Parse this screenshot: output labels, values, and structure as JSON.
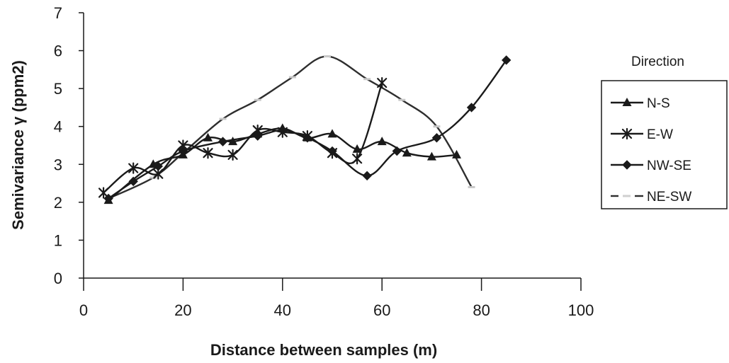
{
  "chart_data": {
    "type": "line",
    "title": "",
    "xlabel": "Distance between samples (m)",
    "ylabel": "Semivariance γ (ppm2)",
    "xlim": [
      0,
      100
    ],
    "ylim": [
      0,
      7
    ],
    "x_ticks": [
      "0",
      "20",
      "40",
      "60",
      "80",
      "100"
    ],
    "y_ticks": [
      "0",
      "1",
      "2",
      "3",
      "4",
      "5",
      "6",
      "7"
    ],
    "grid": false,
    "legend_title": "Direction",
    "legend_position": "right",
    "series": [
      {
        "name": "N-S",
        "marker": "triangle",
        "color": "#1a1a1a",
        "x": [
          5,
          14,
          20,
          25,
          30,
          35,
          40,
          45,
          50,
          55,
          60,
          65,
          70,
          75
        ],
        "y": [
          2.05,
          3.0,
          3.25,
          3.7,
          3.6,
          3.8,
          3.95,
          3.7,
          3.8,
          3.4,
          3.6,
          3.3,
          3.2,
          3.25
        ]
      },
      {
        "name": "E-W",
        "marker": "asterisk",
        "color": "#1a1a1a",
        "x": [
          4,
          10,
          15,
          20,
          25,
          30,
          35,
          40,
          45,
          50,
          55,
          60
        ],
        "y": [
          2.25,
          2.9,
          2.75,
          3.5,
          3.3,
          3.25,
          3.9,
          3.85,
          3.75,
          3.3,
          3.15,
          5.15
        ]
      },
      {
        "name": "NW-SE",
        "marker": "diamond",
        "color": "#1a1a1a",
        "x": [
          5,
          10,
          15,
          20,
          28,
          35,
          40,
          45,
          50,
          57,
          63,
          71,
          78,
          85
        ],
        "y": [
          2.1,
          2.55,
          2.95,
          3.35,
          3.6,
          3.75,
          3.9,
          3.7,
          3.35,
          2.7,
          3.35,
          3.7,
          4.5,
          5.75
        ]
      },
      {
        "name": "NE-SW",
        "marker": "dash",
        "color": "#2e2e2e",
        "x": [
          5,
          14,
          20,
          28,
          35,
          42,
          49,
          57,
          64,
          71,
          78
        ],
        "y": [
          2.1,
          2.65,
          3.3,
          4.2,
          4.7,
          5.3,
          5.85,
          5.25,
          4.7,
          4.0,
          2.4
        ]
      }
    ]
  }
}
